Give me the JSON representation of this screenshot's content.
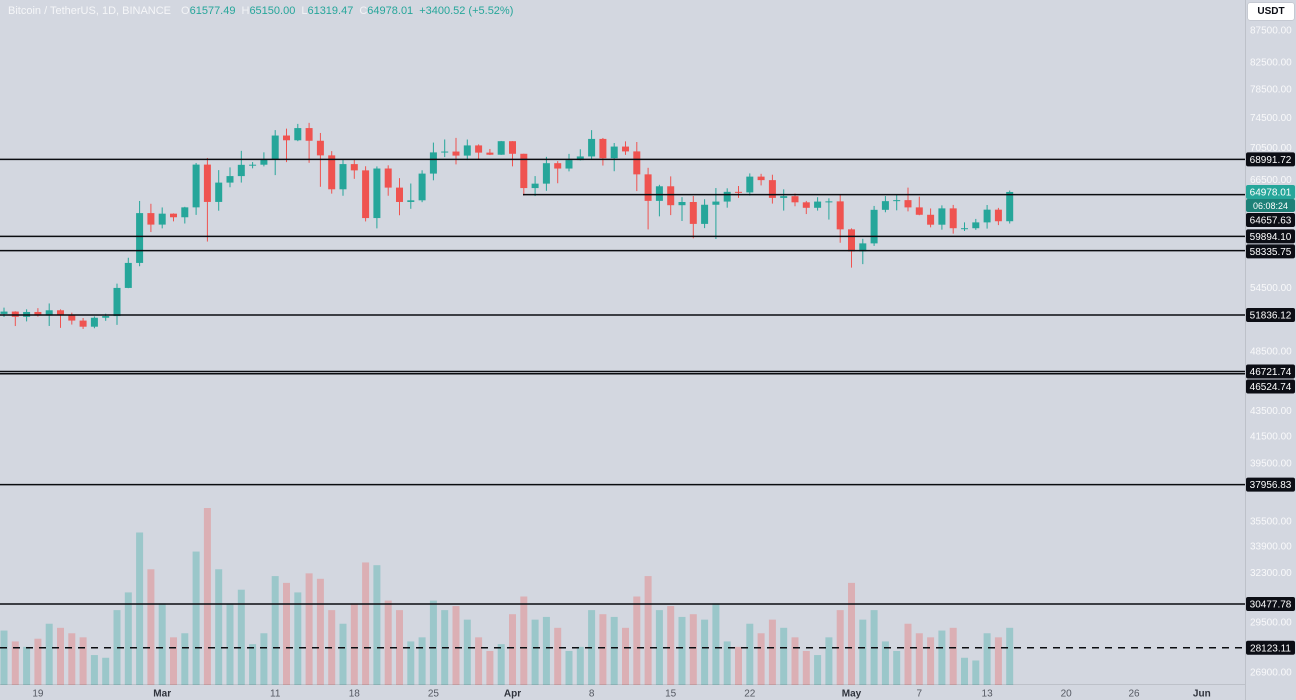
{
  "legend": {
    "title": "Bitcoin / TetherUS, 1D, BINANCE",
    "o_label": "O",
    "o": "61577.49",
    "h_label": "H",
    "h": "65150.00",
    "l_label": "L",
    "l": "61319.47",
    "c_label": "C",
    "c": "64978.01",
    "change": "+3400.52 (+5.52%)"
  },
  "currency_button": "USDT",
  "colors": {
    "background": "#d3d7e0",
    "up": "#26a69a",
    "down": "#ef5350",
    "volume_up": "rgba(38,166,154,0.32)",
    "volume_down": "rgba(239,83,80,0.30)",
    "level_line": "#0a0c10",
    "badge_bg": "#0c0e15",
    "badge_text": "#ffffff",
    "last_price_bg": "#26a69a",
    "countdown_bg": "#1d8178",
    "axis_tick_text": "rgba(255,255,255,0.85)",
    "time_label": "#555962",
    "month_label": "#2f333c"
  },
  "chart_data": {
    "type": "candlestick",
    "title": "Bitcoin / TetherUS, 1D, BINANCE",
    "scale": "logarithmic",
    "price_range_top": 87500,
    "price_range_bottom": 26900,
    "price_axis_ticks": [
      "87500.00",
      "82500.00",
      "78500.00",
      "74500.00",
      "70500.00",
      "66500.00",
      "54500.00",
      "48500.00",
      "43500.00",
      "41500.00",
      "39500.00",
      "35500.00",
      "33900.00",
      "32300.00",
      "29500.00",
      "26900.00"
    ],
    "levels": [
      {
        "label": "68991.72",
        "price": 68991.72,
        "dashed": false,
        "partial": false
      },
      {
        "label": "64657.63",
        "price": 64657.63,
        "dashed": false,
        "partial": true
      },
      {
        "label": "59894.10",
        "price": 59894.1,
        "dashed": false,
        "partial": false
      },
      {
        "label": "58335.75",
        "price": 58335.75,
        "dashed": false,
        "partial": false
      },
      {
        "label": "51836.12",
        "price": 51836.12,
        "dashed": false,
        "partial": false
      },
      {
        "label": "46721.74",
        "price": 46721.74,
        "dashed": false,
        "partial": false
      },
      {
        "label": "46524.74",
        "price": 46524.74,
        "dashed": false,
        "partial": false
      },
      {
        "label": "37956.83",
        "price": 37956.83,
        "dashed": false,
        "partial": false
      },
      {
        "label": "30477.78",
        "price": 30477.78,
        "dashed": false,
        "partial": false
      },
      {
        "label": "28123.11",
        "price": 28123.11,
        "dashed": true,
        "partial": false
      }
    ],
    "last_price": {
      "label": "64978.01",
      "price": 64978.01,
      "countdown": "06:08:24"
    },
    "time_labels": [
      {
        "label": "19",
        "index": 3,
        "month": false
      },
      {
        "label": "Mar",
        "index": 14,
        "month": true
      },
      {
        "label": "11",
        "index": 24,
        "month": false
      },
      {
        "label": "18",
        "index": 31,
        "month": false
      },
      {
        "label": "25",
        "index": 38,
        "month": false
      },
      {
        "label": "Apr",
        "index": 45,
        "month": true
      },
      {
        "label": "8",
        "index": 52,
        "month": false
      },
      {
        "label": "15",
        "index": 59,
        "month": false
      },
      {
        "label": "22",
        "index": 66,
        "month": false
      },
      {
        "label": "May",
        "index": 75,
        "month": true
      },
      {
        "label": "7",
        "index": 81,
        "month": false
      },
      {
        "label": "13",
        "index": 87,
        "month": false
      },
      {
        "label": "20",
        "index": 94,
        "month": false
      },
      {
        "label": "26",
        "index": 100,
        "month": false
      },
      {
        "label": "Jun",
        "index": 106,
        "month": true
      }
    ],
    "candles": [
      [
        51937,
        52537,
        51642,
        52160,
        40
      ],
      [
        52160,
        52191,
        50791,
        51662,
        32
      ],
      [
        51662,
        52377,
        51227,
        52122,
        28
      ],
      [
        52122,
        52488,
        51677,
        51779,
        34
      ],
      [
        51779,
        52945,
        50800,
        52284,
        45
      ],
      [
        52284,
        52368,
        50625,
        51839,
        42
      ],
      [
        51839,
        52055,
        50930,
        51304,
        38
      ],
      [
        51304,
        51548,
        50521,
        50731,
        35
      ],
      [
        50731,
        51698,
        50585,
        51571,
        22
      ],
      [
        51571,
        51958,
        51279,
        51733,
        20
      ],
      [
        51733,
        54910,
        50901,
        54476,
        55
      ],
      [
        54476,
        57580,
        54450,
        57037,
        68
      ],
      [
        57037,
        63913,
        56691,
        62504,
        112
      ],
      [
        62504,
        63585,
        60365,
        61198,
        85
      ],
      [
        61198,
        63156,
        60777,
        62440,
        60
      ],
      [
        62440,
        62480,
        61561,
        62029,
        35
      ],
      [
        62029,
        63231,
        61320,
        63168,
        38
      ],
      [
        63168,
        68537,
        62300,
        68330,
        98
      ],
      [
        68330,
        69170,
        59323,
        63801,
        130
      ],
      [
        63801,
        67641,
        62779,
        66106,
        85
      ],
      [
        66106,
        67980,
        65551,
        66902,
        60
      ],
      [
        66902,
        70083,
        66112,
        68300,
        70
      ],
      [
        68300,
        68650,
        67861,
        68318,
        30
      ],
      [
        68318,
        69887,
        68105,
        68955,
        38
      ],
      [
        68955,
        72800,
        67024,
        72078,
        80
      ],
      [
        72078,
        73000,
        68636,
        71452,
        75
      ],
      [
        71452,
        73637,
        71334,
        73072,
        68
      ],
      [
        73072,
        73777,
        68555,
        71388,
        82
      ],
      [
        71388,
        72419,
        65600,
        69499,
        78
      ],
      [
        69499,
        70043,
        64780,
        65300,
        55
      ],
      [
        65300,
        68904,
        64533,
        68393,
        45
      ],
      [
        68393,
        68956,
        66565,
        67609,
        60
      ],
      [
        67609,
        68124,
        61555,
        61937,
        90
      ],
      [
        61937,
        68100,
        60775,
        67840,
        88
      ],
      [
        67840,
        68240,
        64529,
        65501,
        62
      ],
      [
        65501,
        66649,
        62260,
        63796,
        55
      ],
      [
        63796,
        65999,
        63000,
        63990,
        32
      ],
      [
        63990,
        67620,
        63772,
        67210,
        35
      ],
      [
        67210,
        71150,
        66385,
        69880,
        62
      ],
      [
        69880,
        71561,
        69280,
        69988,
        55
      ],
      [
        69988,
        71769,
        68359,
        69469,
        58
      ],
      [
        69469,
        71552,
        68903,
        70780,
        48
      ],
      [
        70780,
        70916,
        69009,
        69850,
        35
      ],
      [
        69850,
        70321,
        69540,
        69582,
        25
      ],
      [
        69582,
        71366,
        69562,
        71333,
        30
      ],
      [
        71333,
        71342,
        68110,
        69702,
        52
      ],
      [
        69702,
        69708,
        64550,
        65446,
        65
      ],
      [
        65446,
        66903,
        64493,
        65980,
        48
      ],
      [
        65980,
        69308,
        65113,
        68508,
        50
      ],
      [
        68508,
        68767,
        66029,
        67837,
        42
      ],
      [
        67837,
        69692,
        67482,
        68896,
        25
      ],
      [
        68896,
        70284,
        68851,
        69362,
        28
      ],
      [
        69362,
        72797,
        69043,
        71631,
        55
      ],
      [
        71631,
        71758,
        68210,
        69140,
        52
      ],
      [
        69140,
        71093,
        67503,
        70631,
        50
      ],
      [
        70631,
        71305,
        69567,
        70006,
        42
      ],
      [
        70006,
        71227,
        65086,
        67116,
        65
      ],
      [
        67116,
        67929,
        60660,
        63924,
        80
      ],
      [
        63924,
        65840,
        62134,
        65661,
        55
      ],
      [
        65661,
        66867,
        62274,
        63419,
        58
      ],
      [
        63419,
        64365,
        61600,
        63793,
        50
      ],
      [
        63793,
        64499,
        59678,
        61277,
        52
      ],
      [
        61277,
        64117,
        60803,
        63470,
        48
      ],
      [
        63470,
        65450,
        59600,
        63843,
        60
      ],
      [
        63843,
        65419,
        63130,
        64994,
        32
      ],
      [
        64994,
        65695,
        64277,
        64926,
        28
      ],
      [
        64926,
        67231,
        64548,
        66837,
        45
      ],
      [
        66837,
        67184,
        65765,
        66407,
        38
      ],
      [
        66407,
        67073,
        63606,
        64276,
        48
      ],
      [
        64276,
        65297,
        62794,
        64481,
        42
      ],
      [
        64481,
        64789,
        63296,
        63755,
        35
      ],
      [
        63755,
        63920,
        62395,
        63116,
        25
      ],
      [
        63116,
        64355,
        62793,
        63841,
        22
      ],
      [
        63841,
        64228,
        61766,
        63866,
        35
      ],
      [
        63866,
        64727,
        59191,
        60666,
        55
      ],
      [
        60666,
        60777,
        56552,
        58254,
        75
      ],
      [
        58254,
        59625,
        56911,
        59123,
        48
      ],
      [
        59123,
        63333,
        58848,
        62882,
        55
      ],
      [
        62882,
        64494,
        62600,
        63892,
        32
      ],
      [
        63892,
        64646,
        62822,
        64012,
        25
      ],
      [
        64012,
        65500,
        62700,
        63163,
        45
      ],
      [
        63163,
        64420,
        62260,
        62312,
        38
      ],
      [
        62312,
        63040,
        60888,
        61187,
        35
      ],
      [
        61187,
        63399,
        60630,
        63049,
        40
      ],
      [
        63049,
        63450,
        60192,
        60792,
        42
      ],
      [
        60792,
        61451,
        60487,
        60793,
        20
      ],
      [
        60793,
        61840,
        60610,
        61448,
        18
      ],
      [
        61448,
        63440,
        60749,
        62901,
        38
      ],
      [
        62901,
        63109,
        61142,
        61577,
        35
      ],
      [
        61577.49,
        65150.0,
        61319.47,
        64978.01,
        42
      ]
    ]
  }
}
